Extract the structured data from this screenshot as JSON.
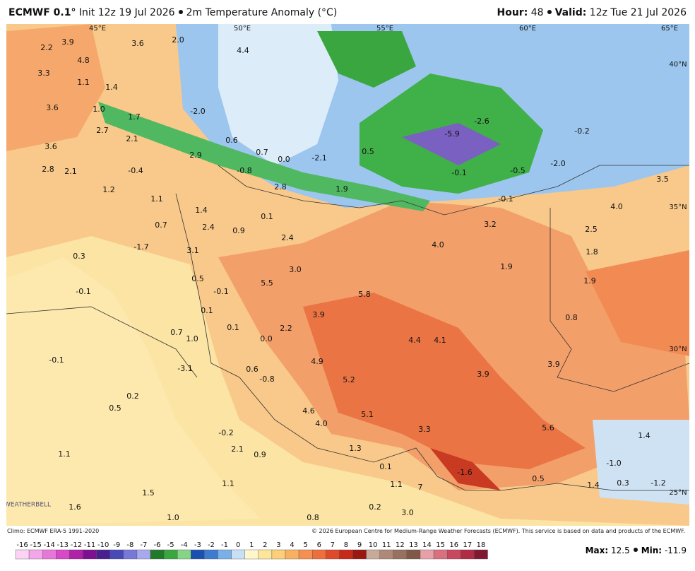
{
  "header": {
    "model": "ECMWF 0.1°",
    "init": "Init 12z 19 Jul 2026",
    "field": "2m Temperature Anomaly (°C)",
    "hour_label": "Hour:",
    "hour": "48",
    "valid_label": "Valid:",
    "valid": "12z Tue 21 Jul 2026"
  },
  "map": {
    "grid_labels": [
      "45°E",
      "50°E",
      "55°E",
      "60°E",
      "65°E",
      "40°N",
      "35°N",
      "30°N",
      "25°N"
    ],
    "labels": [
      "2.2",
      "3.9",
      "3.6",
      "2.0",
      "4.4",
      "4.8",
      "3.3",
      "1.1",
      "1.4",
      "3.6",
      "1.0",
      "1.7",
      "-2.0",
      "2.7",
      "2.1",
      "0.6",
      "3.6",
      "0.7",
      "0.0",
      "-2.1",
      "0.5",
      "-5.9",
      "-2.6",
      "-0.2",
      "2.9",
      "2.8",
      "2.1",
      "-0.4",
      "-0.8",
      "-0.1",
      "-0.5",
      "-2.0",
      "2.8",
      "1.9",
      "3.5",
      "1.2",
      "1.1",
      "-0.1",
      "4.0",
      "1.4",
      "0.1",
      "0.7",
      "2.4",
      "0.9",
      "3.2",
      "2.5",
      "2.4",
      "-1.7",
      "3.1",
      "4.0",
      "1.8",
      "0.3",
      "1.9",
      "3.0",
      "0.5",
      "5.5",
      "1.9",
      "-0.1",
      "-0.1",
      "5.8",
      "0.1",
      "3.9",
      "0.8",
      "0.1",
      "2.2",
      "0.7",
      "1.0",
      "0.0",
      "4.4",
      "4.1",
      "-0.1",
      "4.9",
      "3.9",
      "-3.1",
      "0.6",
      "-0.8",
      "5.2",
      "3.9",
      "0.2",
      "0.5",
      "4.6",
      "5.1",
      "4.0",
      "5.6",
      "-0.2",
      "3.3",
      "1.4",
      "1.1",
      "2.1",
      "1.3",
      "0.9",
      "-1.0",
      "0.1",
      "-1.6",
      "1.1",
      "1.1",
      "0.5",
      "1.4",
      "0.3",
      "-1.2",
      "1.5",
      "7",
      "1.6",
      "0.2",
      "3.0",
      "1.0",
      "0.8"
    ],
    "logo": "WEATHERBELL"
  },
  "footer": {
    "climo": "Climo: ECMWF ERA-5 1991-2020",
    "copyright": "© 2026 European Centre for Medium-Range Weather Forecasts (ECMWF). This service is based on data and products of the ECMWF.",
    "max_label": "Max:",
    "max": "12.5",
    "min_label": "Min:",
    "min": "-11.9"
  },
  "colorbar": {
    "ticks": [
      -16,
      -15,
      -14,
      -13,
      -12,
      -11,
      -10,
      -9,
      -8,
      -7,
      -6,
      -5,
      -4,
      -3,
      -2,
      -1,
      0,
      1,
      2,
      3,
      4,
      5,
      6,
      7,
      8,
      9,
      10,
      11,
      12,
      13,
      14,
      15,
      16,
      17,
      18
    ],
    "colors": [
      "#fbd3f4",
      "#f3a6e8",
      "#e878d8",
      "#d848c8",
      "#b020a8",
      "#7c1090",
      "#4a2090",
      "#4848b8",
      "#7878d8",
      "#a8a8ee",
      "#1f7a2a",
      "#3aa640",
      "#86d486",
      "#1c50b0",
      "#3c7cd0",
      "#7ab0e8",
      "#c8e0f6",
      "#fff6cc",
      "#fde69a",
      "#fccf78",
      "#f9b060",
      "#f59050",
      "#ee6e3c",
      "#e04a2a",
      "#c82a1a",
      "#9a1810",
      "#c8aa98",
      "#b08878",
      "#987060",
      "#805848",
      "#e8a0a8",
      "#d87080",
      "#c84860",
      "#b02c44",
      "#801830"
    ]
  }
}
